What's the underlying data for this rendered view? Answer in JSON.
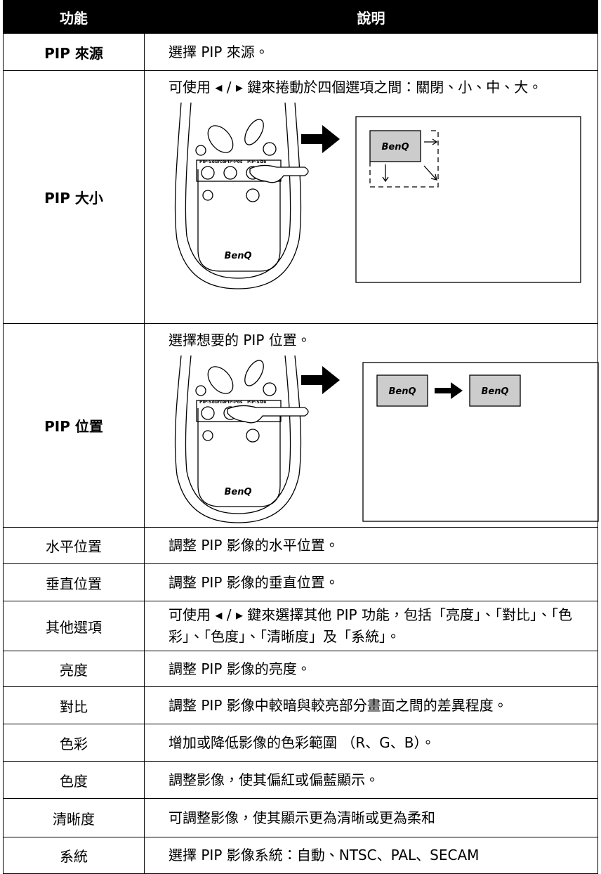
{
  "table": {
    "header": [
      "功能",
      "說明"
    ],
    "rows": [
      {
        "function": "PIP 來源",
        "description": "選擇 PIP 來源。"
      },
      {
        "function": "PIP 大小",
        "description": "可使用 ◂ / ▸ 鍵來捲動於四個選項之間：關閉、小、中、大。",
        "figure": {
          "buttons": [
            "PIP-Source",
            "PIP-Pos",
            "PIP-Size"
          ],
          "remote_logo": "BenQ",
          "screen_logos": [
            "BenQ"
          ]
        }
      },
      {
        "function": "PIP 位置",
        "description": "選擇想要的 PIP 位置。",
        "figure": {
          "buttons": [
            "PIP-Source",
            "PIP-Pos",
            "PIP-Size"
          ],
          "remote_logo": "BenQ",
          "screen_logos": [
            "BenQ",
            "BenQ"
          ]
        }
      },
      {
        "function": "水平位置",
        "description": "調整 PIP 影像的水平位置。"
      },
      {
        "function": "垂直位置",
        "description": "調整 PIP 影像的垂直位置。"
      },
      {
        "function": "其他選項",
        "description": "可使用 ◂ / ▸ 鍵來選擇其他 PIP 功能，包括「亮度」、「對比」、「色彩」、「色度」、「清晰度」及「系統」。"
      },
      {
        "function": "亮度",
        "description": "調整 PIP 影像的亮度。"
      },
      {
        "function": "對比",
        "description": "調整 PIP 影像中較暗與較亮部分畫面之間的差異程度。"
      },
      {
        "function": "色彩",
        "description": "增加或降低影像的色彩範圍 （R、G、B）。"
      },
      {
        "function": "色度",
        "description": "調整影像，使其偏紅或偏藍顯示。"
      },
      {
        "function": "清晰度",
        "description": "可調整影像，使其顯示更為清晰或更為柔和"
      },
      {
        "function": "系統",
        "description": "選擇 PIP 影像系統：自動、NTSC、PAL、SECAM"
      }
    ]
  }
}
